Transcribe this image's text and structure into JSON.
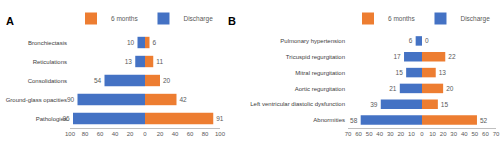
{
  "chart_data": [
    {
      "type": "bar",
      "title": "A",
      "orientation": "horizontal",
      "data_labels": true,
      "grid": false,
      "legend": "top",
      "categories": [
        "Bronchiectasis",
        "Reticulations",
        "Consolidations",
        "Ground-glass opacities",
        "Pathologies"
      ],
      "xlim": [
        0,
        100
      ],
      "xticks": [
        0,
        20,
        40,
        60,
        80,
        100
      ],
      "series": [
        {
          "name": "6 months",
          "color": "#ED7D31",
          "axis": "x2",
          "values": [
            6,
            11,
            20,
            42,
            91
          ]
        },
        {
          "name": "Discharge",
          "color": "#4472C4",
          "values": [
            10,
            13,
            54,
            90,
            96
          ]
        }
      ]
    },
    {
      "type": "bar",
      "title": "B",
      "orientation": "horizontal",
      "data_labels": true,
      "grid": false,
      "legend": "top",
      "categories": [
        "Pulmonary hypertension",
        "Tricuspid regurgitation",
        "Mitral regurgitation",
        "Aortic regurgitation",
        "Left ventricular diastolic dysfunction",
        "Abnormities"
      ],
      "xlim": [
        0,
        70
      ],
      "xticks": [
        0,
        10,
        20,
        30,
        40,
        50,
        60,
        70
      ],
      "series": [
        {
          "name": "6 months",
          "color": "#ED7D31",
          "axis": "x2",
          "values": [
            0,
            22,
            13,
            20,
            15,
            52
          ]
        },
        {
          "name": "Discharge",
          "color": "#4472C4",
          "values": [
            6,
            17,
            15,
            21,
            39,
            58
          ]
        }
      ]
    }
  ]
}
